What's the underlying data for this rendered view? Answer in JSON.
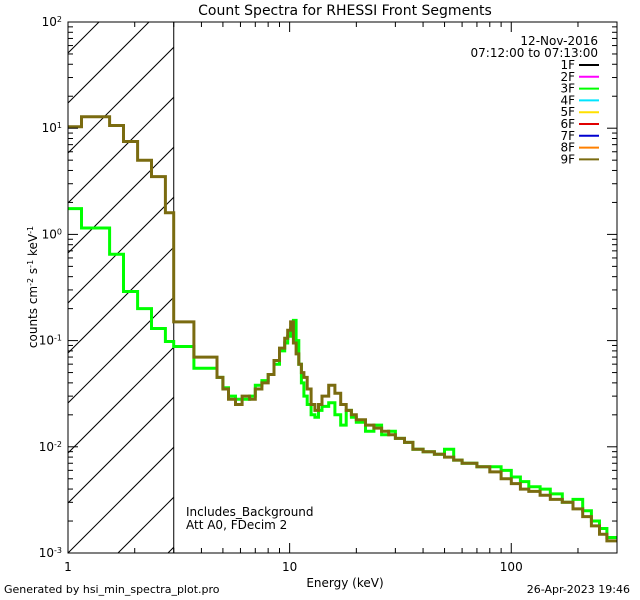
{
  "chart_data": {
    "type": "line",
    "step": true,
    "title": "Count Spectra for RHESSI Front Segments",
    "xlabel": "Energy (keV)",
    "ylabel": "counts cm-2 s-1 keV-1",
    "xscale": "log",
    "yscale": "log",
    "xlim": [
      1,
      300
    ],
    "ylim": [
      0.001,
      100
    ],
    "x_ticks": [
      {
        "value": 1,
        "label": "1"
      },
      {
        "value": 10,
        "label": "10"
      },
      {
        "value": 100,
        "label": "100"
      }
    ],
    "y_ticks": [
      {
        "value": 0.001,
        "base": "10",
        "exp": "-3"
      },
      {
        "value": 0.01,
        "base": "10",
        "exp": "-2"
      },
      {
        "value": 0.1,
        "base": "10",
        "exp": "-1"
      },
      {
        "value": 1,
        "base": "10",
        "exp": "0"
      },
      {
        "value": 10,
        "base": "10",
        "exp": "1"
      },
      {
        "value": 100,
        "base": "10",
        "exp": "2"
      }
    ],
    "ylabel_parts": {
      "prefix": "counts cm",
      "exp1": "-2",
      "mid": " s",
      "exp2": "-1",
      "mid2": " keV",
      "exp3": "-1"
    },
    "date": "12-Nov-2016",
    "time_range": "07:12:00 to 07:13:00",
    "hatched_region": {
      "from": 1,
      "to": 3
    },
    "notes": [
      "Includes_Background",
      "Att A0, FDecim 2"
    ],
    "legend_position": "top-right",
    "legend": [
      {
        "name": "1F",
        "color": "#000000"
      },
      {
        "name": "2F",
        "color": "#ff00ff"
      },
      {
        "name": "3F",
        "color": "#00ff00"
      },
      {
        "name": "4F",
        "color": "#00e5ff"
      },
      {
        "name": "5F",
        "color": "#ffe000"
      },
      {
        "name": "6F",
        "color": "#e00000"
      },
      {
        "name": "7F",
        "color": "#0000d0"
      },
      {
        "name": "8F",
        "color": "#ff8000"
      },
      {
        "name": "9F",
        "color": "#7a6b10"
      }
    ],
    "series": [
      {
        "name": "3F",
        "color": "#00ff00",
        "edges": [
          1.0,
          1.15,
          1.33,
          1.54,
          1.78,
          2.06,
          2.38,
          2.75,
          3.0,
          3.7,
          4.7,
          5.0,
          5.3,
          5.7,
          6.1,
          6.6,
          7.0,
          7.5,
          8.0,
          8.5,
          9.0,
          9.5,
          9.8,
          10.1,
          10.4,
          10.7,
          11.0,
          11.3,
          11.6,
          12.0,
          12.5,
          13.0,
          13.5,
          14.0,
          15.0,
          16.0,
          17.0,
          18.0,
          19.0,
          20.0,
          22.0,
          24.0,
          26.0,
          28.0,
          30.0,
          33.0,
          36.0,
          40.0,
          45.0,
          50.0,
          55.0,
          60.0,
          70.0,
          80.0,
          90.0,
          100.0,
          110.0,
          120.0,
          135.0,
          150.0,
          170.0,
          190.0,
          210.0,
          230.0,
          250.0,
          270.0,
          300.0
        ],
        "values": [
          1.75,
          1.15,
          1.15,
          0.65,
          0.29,
          0.2,
          0.13,
          0.098,
          0.088,
          0.055,
          0.045,
          0.036,
          0.03,
          0.028,
          0.028,
          0.03,
          0.038,
          0.042,
          0.048,
          0.06,
          0.08,
          0.095,
          0.11,
          0.13,
          0.155,
          0.1,
          0.06,
          0.04,
          0.03,
          0.025,
          0.02,
          0.019,
          0.022,
          0.024,
          0.026,
          0.02,
          0.016,
          0.022,
          0.019,
          0.017,
          0.014,
          0.016,
          0.013,
          0.014,
          0.012,
          0.011,
          0.0095,
          0.009,
          0.0085,
          0.0095,
          0.0075,
          0.007,
          0.0065,
          0.0065,
          0.006,
          0.0052,
          0.0047,
          0.0042,
          0.004,
          0.0036,
          0.003,
          0.0032,
          0.0025,
          0.002,
          0.0017,
          0.0014
        ]
      },
      {
        "name": "9F",
        "color": "#7a6b10",
        "edges": [
          1.0,
          1.15,
          1.33,
          1.54,
          1.78,
          2.06,
          2.38,
          2.75,
          3.0,
          3.7,
          4.7,
          5.0,
          5.3,
          5.7,
          6.1,
          6.6,
          7.0,
          7.5,
          8.0,
          8.5,
          9.0,
          9.5,
          9.8,
          10.1,
          10.4,
          10.7,
          11.0,
          11.3,
          11.6,
          12.0,
          12.5,
          13.0,
          13.5,
          14.0,
          15.0,
          16.0,
          17.0,
          18.0,
          19.0,
          20.0,
          22.0,
          24.0,
          26.0,
          28.0,
          30.0,
          33.0,
          36.0,
          40.0,
          45.0,
          50.0,
          55.0,
          60.0,
          70.0,
          80.0,
          90.0,
          100.0,
          110.0,
          120.0,
          135.0,
          150.0,
          170.0,
          190.0,
          210.0,
          230.0,
          250.0,
          270.0,
          300.0
        ],
        "values": [
          10.3,
          12.8,
          12.8,
          10.6,
          7.5,
          5.0,
          3.5,
          1.6,
          0.15,
          0.07,
          0.045,
          0.035,
          0.028,
          0.025,
          0.03,
          0.028,
          0.035,
          0.04,
          0.048,
          0.065,
          0.085,
          0.105,
          0.125,
          0.15,
          0.095,
          0.075,
          0.06,
          0.05,
          0.045,
          0.035,
          0.025,
          0.022,
          0.025,
          0.03,
          0.038,
          0.032,
          0.025,
          0.022,
          0.02,
          0.018,
          0.016,
          0.015,
          0.014,
          0.013,
          0.012,
          0.011,
          0.0095,
          0.009,
          0.0085,
          0.008,
          0.0075,
          0.007,
          0.0065,
          0.0058,
          0.005,
          0.0045,
          0.004,
          0.0038,
          0.0035,
          0.0032,
          0.003,
          0.0026,
          0.0022,
          0.0018,
          0.0015,
          0.0013
        ]
      }
    ]
  },
  "footer": {
    "generated_by": "Generated by hsi_min_spectra_plot.pro",
    "timestamp": "26-Apr-2023 19:46"
  }
}
